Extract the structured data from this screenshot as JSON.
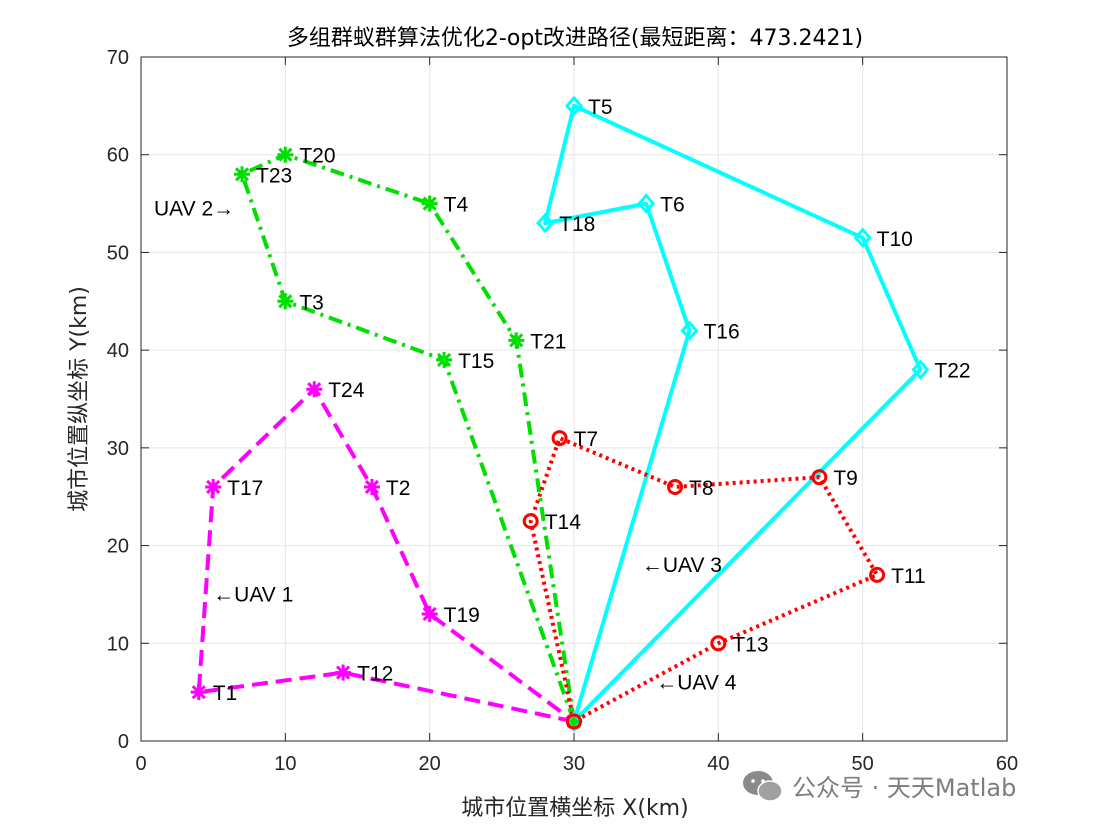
{
  "chart_data": {
    "type": "line",
    "title": "多组群蚁群算法优化2-opt改进路径(最短距离：473.2421)",
    "xlabel": "城市位置横坐标 X(km)",
    "ylabel": "城市位置纵坐标 Y(km)",
    "xlim": [
      0,
      60
    ],
    "ylim": [
      0,
      70
    ],
    "xticks": [
      0,
      10,
      20,
      30,
      40,
      50,
      60
    ],
    "yticks": [
      0,
      10,
      20,
      30,
      40,
      50,
      60,
      70
    ],
    "grid": true,
    "depot": {
      "x": 30,
      "y": 2
    },
    "series": [
      {
        "name": "UAV 1",
        "color": "#ff00ff",
        "linestyle": "dashed",
        "marker": "asterisk",
        "points": [
          [
            30,
            2
          ],
          [
            14,
            7
          ],
          [
            4,
            5
          ],
          [
            5,
            26
          ],
          [
            12,
            36
          ],
          [
            16,
            26
          ],
          [
            20,
            13
          ],
          [
            30,
            2
          ]
        ]
      },
      {
        "name": "UAV 2",
        "color": "#00e000",
        "linestyle": "dashdot",
        "marker": "asterisk",
        "points": [
          [
            30,
            2
          ],
          [
            21,
            39
          ],
          [
            10,
            45
          ],
          [
            7,
            58
          ],
          [
            10,
            60
          ],
          [
            20,
            55
          ],
          [
            26,
            41
          ],
          [
            30,
            2
          ]
        ]
      },
      {
        "name": "UAV 3",
        "color": "#00ffff",
        "linestyle": "solid",
        "marker": "diamond",
        "points": [
          [
            30,
            2
          ],
          [
            38,
            42
          ],
          [
            35,
            55
          ],
          [
            28,
            53
          ],
          [
            30,
            65
          ],
          [
            50,
            51.5
          ],
          [
            54,
            38
          ],
          [
            30,
            2
          ]
        ]
      },
      {
        "name": "UAV 4",
        "color": "#ff0000",
        "linestyle": "dotted",
        "marker": "circle",
        "points": [
          [
            30,
            2
          ],
          [
            27,
            22.5
          ],
          [
            29,
            31
          ],
          [
            37,
            26
          ],
          [
            47,
            27
          ],
          [
            51,
            17
          ],
          [
            40,
            10
          ],
          [
            30,
            2
          ]
        ]
      }
    ],
    "point_labels": [
      {
        "text": "T1",
        "x": 4,
        "y": 5
      },
      {
        "text": "T12",
        "x": 14,
        "y": 7
      },
      {
        "text": "T17",
        "x": 5,
        "y": 26
      },
      {
        "text": "T24",
        "x": 12,
        "y": 36
      },
      {
        "text": "T2",
        "x": 16,
        "y": 26
      },
      {
        "text": "T19",
        "x": 20,
        "y": 13
      },
      {
        "text": "T15",
        "x": 21,
        "y": 39
      },
      {
        "text": "T3",
        "x": 10,
        "y": 45
      },
      {
        "text": "T23",
        "x": 7,
        "y": 58
      },
      {
        "text": "T20",
        "x": 10,
        "y": 60
      },
      {
        "text": "T4",
        "x": 20,
        "y": 55
      },
      {
        "text": "T21",
        "x": 26,
        "y": 41
      },
      {
        "text": "T16",
        "x": 38,
        "y": 42
      },
      {
        "text": "T6",
        "x": 35,
        "y": 55
      },
      {
        "text": "T18",
        "x": 28,
        "y": 53
      },
      {
        "text": "T5",
        "x": 30,
        "y": 65
      },
      {
        "text": "T10",
        "x": 50,
        "y": 51.5
      },
      {
        "text": "T22",
        "x": 54,
        "y": 38
      },
      {
        "text": "T14",
        "x": 27,
        "y": 22.5
      },
      {
        "text": "T7",
        "x": 29,
        "y": 31
      },
      {
        "text": "T8",
        "x": 37,
        "y": 26
      },
      {
        "text": "T9",
        "x": 47,
        "y": 27
      },
      {
        "text": "T11",
        "x": 51,
        "y": 17
      },
      {
        "text": "T13",
        "x": 40,
        "y": 10
      }
    ],
    "annotations": [
      {
        "text": "←UAV 1",
        "x": 5,
        "y": 15
      },
      {
        "text": "UAV 2→",
        "x": 0.9,
        "y": 54.5
      },
      {
        "text": "←UAV 3",
        "x": 34.7,
        "y": 18
      },
      {
        "text": "←UAV 4",
        "x": 35.7,
        "y": 6
      }
    ]
  },
  "watermark": {
    "text": "公众号 · 天天Matlab",
    "icon": "wechat-icon"
  }
}
